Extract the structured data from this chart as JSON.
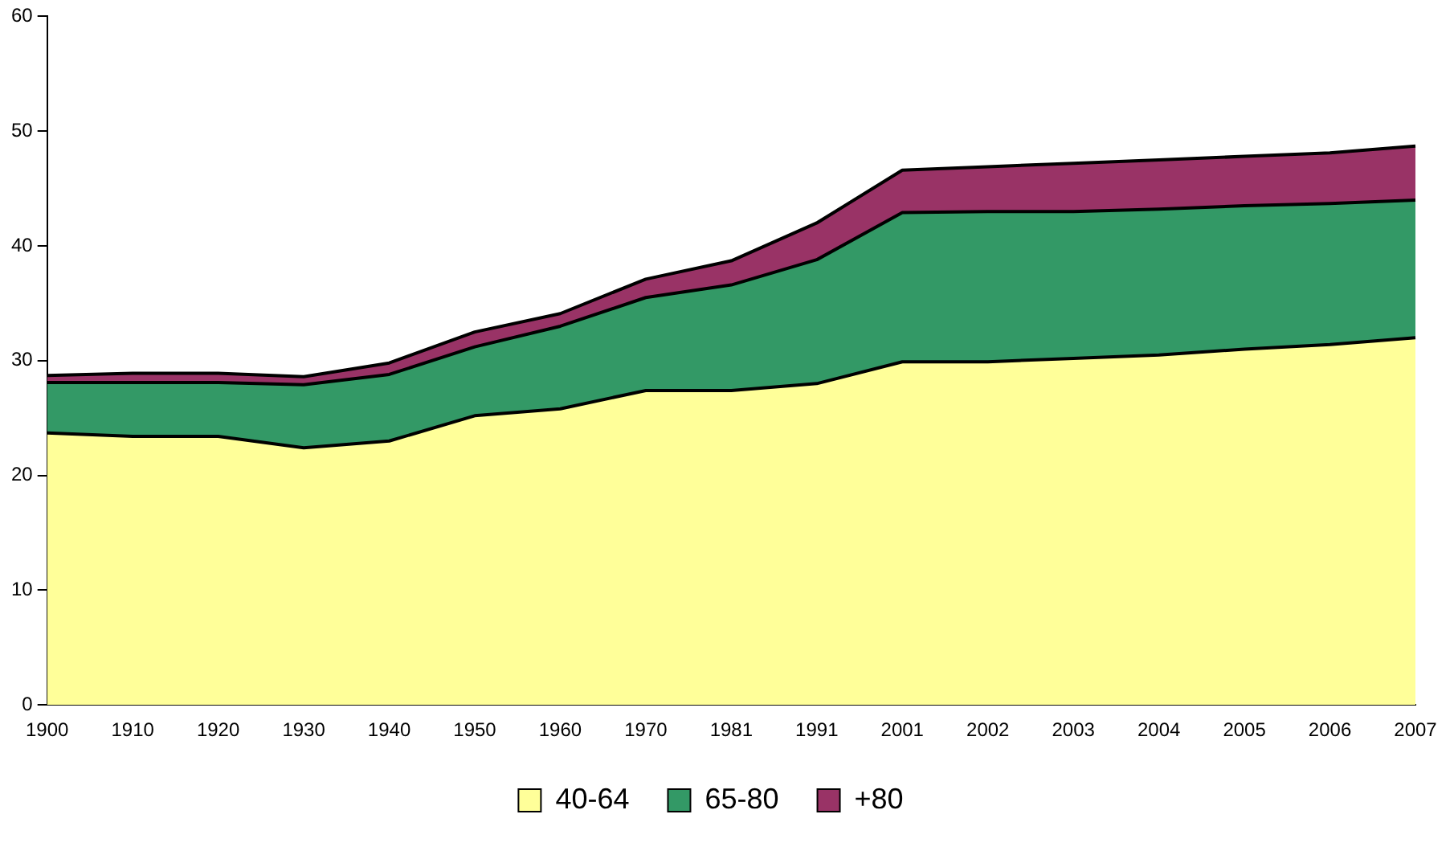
{
  "chart_data": {
    "type": "area",
    "stacked": true,
    "categories": [
      "1900",
      "1910",
      "1920",
      "1930",
      "1940",
      "1950",
      "1960",
      "1970",
      "1981",
      "1991",
      "2001",
      "2002",
      "2003",
      "2004",
      "2005",
      "2006",
      "2007"
    ],
    "series": [
      {
        "name": "40-64",
        "color": "#ffff99",
        "values": [
          23.7,
          23.4,
          23.4,
          22.4,
          23.0,
          25.2,
          25.8,
          27.4,
          27.4,
          28.0,
          29.9,
          29.9,
          30.2,
          30.5,
          31.0,
          31.4,
          32.0
        ]
      },
      {
        "name": "65-80",
        "color": "#339966",
        "values": [
          4.4,
          4.7,
          4.7,
          5.5,
          5.8,
          6.0,
          7.2,
          8.1,
          9.2,
          10.8,
          13.0,
          13.1,
          12.8,
          12.7,
          12.5,
          12.3,
          12.0
        ]
      },
      {
        "name": "+80",
        "color": "#993366",
        "values": [
          0.6,
          0.8,
          0.8,
          0.7,
          1.0,
          1.3,
          1.1,
          1.6,
          2.1,
          3.2,
          3.7,
          3.9,
          4.2,
          4.3,
          4.3,
          4.4,
          4.7
        ]
      }
    ],
    "ylim": [
      0,
      60
    ],
    "yticks": [
      0,
      10,
      20,
      30,
      40,
      50,
      60
    ],
    "grid": false,
    "legend": "bottom"
  }
}
